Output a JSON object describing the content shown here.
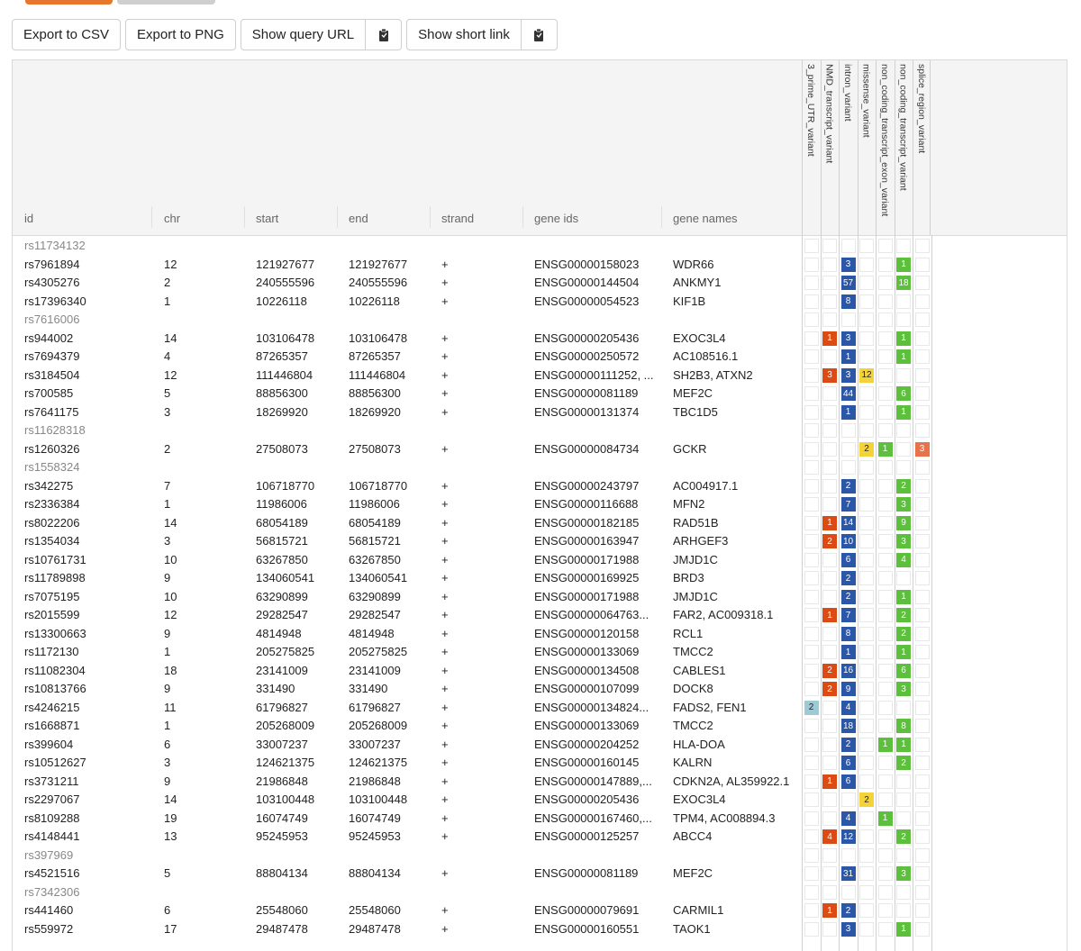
{
  "toolbar": {
    "export_csv": "Export to CSV",
    "export_png": "Export to PNG",
    "show_query_url": "Show query URL",
    "show_short_link": "Show short link",
    "clipboard_icon": "clipboard-icon"
  },
  "columns": {
    "id": "id",
    "chr": "chr",
    "start": "start",
    "end": "end",
    "strand": "strand",
    "gene_ids": "gene ids",
    "gene_names": "gene names"
  },
  "variant_columns": [
    "3_prime_UTR_variant",
    "NMD_transcript_variant",
    "intron_variant",
    "missense_variant",
    "non_coding_transcript_exon_variant",
    "non_coding_transcript_variant",
    "splice_region_variant"
  ],
  "colors": {
    "3_prime_UTR_variant": "#9ecad3",
    "NMD_transcript_variant": "#dc4b14",
    "intron_variant": "#2b57a6",
    "missense_variant": "#f3d23a",
    "non_coding_transcript_exon_variant": "#5cc03c",
    "non_coding_transcript_variant": "#5cc03c",
    "splice_region_variant": "#e8734a",
    "accent": "#e8772e"
  },
  "rows": [
    {
      "id": "rs11734132",
      "chr": "",
      "start": "",
      "end": "",
      "strand": "",
      "gene_ids": "",
      "gene_names": "",
      "v": [
        null,
        null,
        null,
        null,
        null,
        null,
        null
      ]
    },
    {
      "id": "rs7961894",
      "chr": "12",
      "start": "121927677",
      "end": "121927677",
      "strand": "+",
      "gene_ids": "ENSG00000158023",
      "gene_names": "WDR66",
      "v": [
        null,
        null,
        3,
        null,
        null,
        1,
        null
      ]
    },
    {
      "id": "rs4305276",
      "chr": "2",
      "start": "240555596",
      "end": "240555596",
      "strand": "+",
      "gene_ids": "ENSG00000144504",
      "gene_names": "ANKMY1",
      "v": [
        null,
        null,
        57,
        null,
        null,
        18,
        null
      ]
    },
    {
      "id": "rs17396340",
      "chr": "1",
      "start": "10226118",
      "end": "10226118",
      "strand": "+",
      "gene_ids": "ENSG00000054523",
      "gene_names": "KIF1B",
      "v": [
        null,
        null,
        8,
        null,
        null,
        null,
        null
      ]
    },
    {
      "id": "rs7616006",
      "chr": "",
      "start": "",
      "end": "",
      "strand": "",
      "gene_ids": "",
      "gene_names": "",
      "v": [
        null,
        null,
        null,
        null,
        null,
        null,
        null
      ]
    },
    {
      "id": "rs944002",
      "chr": "14",
      "start": "103106478",
      "end": "103106478",
      "strand": "+",
      "gene_ids": "ENSG00000205436",
      "gene_names": "EXOC3L4",
      "v": [
        null,
        1,
        3,
        null,
        null,
        1,
        null
      ]
    },
    {
      "id": "rs7694379",
      "chr": "4",
      "start": "87265357",
      "end": "87265357",
      "strand": "+",
      "gene_ids": "ENSG00000250572",
      "gene_names": "AC108516.1",
      "v": [
        null,
        null,
        1,
        null,
        null,
        1,
        null
      ]
    },
    {
      "id": "rs3184504",
      "chr": "12",
      "start": "111446804",
      "end": "111446804",
      "strand": "+",
      "gene_ids": "ENSG00000111252, ...",
      "gene_names": "SH2B3, ATXN2",
      "v": [
        null,
        3,
        3,
        12,
        null,
        null,
        null
      ]
    },
    {
      "id": "rs700585",
      "chr": "5",
      "start": "88856300",
      "end": "88856300",
      "strand": "+",
      "gene_ids": "ENSG00000081189",
      "gene_names": "MEF2C",
      "v": [
        null,
        null,
        44,
        null,
        null,
        6,
        null
      ]
    },
    {
      "id": "rs7641175",
      "chr": "3",
      "start": "18269920",
      "end": "18269920",
      "strand": "+",
      "gene_ids": "ENSG00000131374",
      "gene_names": "TBC1D5",
      "v": [
        null,
        null,
        1,
        null,
        null,
        1,
        null
      ]
    },
    {
      "id": "rs11628318",
      "chr": "",
      "start": "",
      "end": "",
      "strand": "",
      "gene_ids": "",
      "gene_names": "",
      "v": [
        null,
        null,
        null,
        null,
        null,
        null,
        null
      ]
    },
    {
      "id": "rs1260326",
      "chr": "2",
      "start": "27508073",
      "end": "27508073",
      "strand": "+",
      "gene_ids": "ENSG00000084734",
      "gene_names": "GCKR",
      "v": [
        null,
        null,
        null,
        2,
        1,
        null,
        3
      ]
    },
    {
      "id": "rs1558324",
      "chr": "",
      "start": "",
      "end": "",
      "strand": "",
      "gene_ids": "",
      "gene_names": "",
      "v": [
        null,
        null,
        null,
        null,
        null,
        null,
        null
      ]
    },
    {
      "id": "rs342275",
      "chr": "7",
      "start": "106718770",
      "end": "106718770",
      "strand": "+",
      "gene_ids": "ENSG00000243797",
      "gene_names": "AC004917.1",
      "v": [
        null,
        null,
        2,
        null,
        null,
        2,
        null
      ]
    },
    {
      "id": "rs2336384",
      "chr": "1",
      "start": "11986006",
      "end": "11986006",
      "strand": "+",
      "gene_ids": "ENSG00000116688",
      "gene_names": "MFN2",
      "v": [
        null,
        null,
        7,
        null,
        null,
        3,
        null
      ]
    },
    {
      "id": "rs8022206",
      "chr": "14",
      "start": "68054189",
      "end": "68054189",
      "strand": "+",
      "gene_ids": "ENSG00000182185",
      "gene_names": "RAD51B",
      "v": [
        null,
        1,
        14,
        null,
        null,
        9,
        null
      ]
    },
    {
      "id": "rs1354034",
      "chr": "3",
      "start": "56815721",
      "end": "56815721",
      "strand": "+",
      "gene_ids": "ENSG00000163947",
      "gene_names": "ARHGEF3",
      "v": [
        null,
        2,
        10,
        null,
        null,
        3,
        null
      ]
    },
    {
      "id": "rs10761731",
      "chr": "10",
      "start": "63267850",
      "end": "63267850",
      "strand": "+",
      "gene_ids": "ENSG00000171988",
      "gene_names": "JMJD1C",
      "v": [
        null,
        null,
        6,
        null,
        null,
        4,
        null
      ]
    },
    {
      "id": "rs11789898",
      "chr": "9",
      "start": "134060541",
      "end": "134060541",
      "strand": "+",
      "gene_ids": "ENSG00000169925",
      "gene_names": "BRD3",
      "v": [
        null,
        null,
        2,
        null,
        null,
        null,
        null
      ]
    },
    {
      "id": "rs7075195",
      "chr": "10",
      "start": "63290899",
      "end": "63290899",
      "strand": "+",
      "gene_ids": "ENSG00000171988",
      "gene_names": "JMJD1C",
      "v": [
        null,
        null,
        2,
        null,
        null,
        1,
        null
      ]
    },
    {
      "id": "rs2015599",
      "chr": "12",
      "start": "29282547",
      "end": "29282547",
      "strand": "+",
      "gene_ids": "ENSG00000064763...",
      "gene_names": "FAR2, AC009318.1",
      "v": [
        null,
        1,
        7,
        null,
        null,
        2,
        null
      ]
    },
    {
      "id": "rs13300663",
      "chr": "9",
      "start": "4814948",
      "end": "4814948",
      "strand": "+",
      "gene_ids": "ENSG00000120158",
      "gene_names": "RCL1",
      "v": [
        null,
        null,
        8,
        null,
        null,
        2,
        null
      ]
    },
    {
      "id": "rs1172130",
      "chr": "1",
      "start": "205275825",
      "end": "205275825",
      "strand": "+",
      "gene_ids": "ENSG00000133069",
      "gene_names": "TMCC2",
      "v": [
        null,
        null,
        1,
        null,
        null,
        1,
        null
      ]
    },
    {
      "id": "rs11082304",
      "chr": "18",
      "start": "23141009",
      "end": "23141009",
      "strand": "+",
      "gene_ids": "ENSG00000134508",
      "gene_names": "CABLES1",
      "v": [
        null,
        2,
        16,
        null,
        null,
        6,
        null
      ]
    },
    {
      "id": "rs10813766",
      "chr": "9",
      "start": "331490",
      "end": "331490",
      "strand": "+",
      "gene_ids": "ENSG00000107099",
      "gene_names": "DOCK8",
      "v": [
        null,
        2,
        9,
        null,
        null,
        3,
        null
      ]
    },
    {
      "id": "rs4246215",
      "chr": "11",
      "start": "61796827",
      "end": "61796827",
      "strand": "+",
      "gene_ids": "ENSG00000134824...",
      "gene_names": "FADS2, FEN1",
      "v": [
        2,
        null,
        4,
        null,
        null,
        null,
        null
      ]
    },
    {
      "id": "rs1668871",
      "chr": "1",
      "start": "205268009",
      "end": "205268009",
      "strand": "+",
      "gene_ids": "ENSG00000133069",
      "gene_names": "TMCC2",
      "v": [
        null,
        null,
        18,
        null,
        null,
        8,
        null
      ]
    },
    {
      "id": "rs399604",
      "chr": "6",
      "start": "33007237",
      "end": "33007237",
      "strand": "+",
      "gene_ids": "ENSG00000204252",
      "gene_names": "HLA-DOA",
      "v": [
        null,
        null,
        2,
        null,
        1,
        1,
        null
      ]
    },
    {
      "id": "rs10512627",
      "chr": "3",
      "start": "124621375",
      "end": "124621375",
      "strand": "+",
      "gene_ids": "ENSG00000160145",
      "gene_names": "KALRN",
      "v": [
        null,
        null,
        6,
        null,
        null,
        2,
        null
      ]
    },
    {
      "id": "rs3731211",
      "chr": "9",
      "start": "21986848",
      "end": "21986848",
      "strand": "+",
      "gene_ids": "ENSG00000147889,...",
      "gene_names": "CDKN2A, AL359922.1",
      "v": [
        null,
        1,
        6,
        null,
        null,
        null,
        null
      ]
    },
    {
      "id": "rs2297067",
      "chr": "14",
      "start": "103100448",
      "end": "103100448",
      "strand": "+",
      "gene_ids": "ENSG00000205436",
      "gene_names": "EXOC3L4",
      "v": [
        null,
        null,
        null,
        2,
        null,
        null,
        null
      ]
    },
    {
      "id": "rs8109288",
      "chr": "19",
      "start": "16074749",
      "end": "16074749",
      "strand": "+",
      "gene_ids": "ENSG00000167460,...",
      "gene_names": "TPM4, AC008894.3",
      "v": [
        null,
        null,
        4,
        null,
        1,
        null,
        null
      ]
    },
    {
      "id": "rs4148441",
      "chr": "13",
      "start": "95245953",
      "end": "95245953",
      "strand": "+",
      "gene_ids": "ENSG00000125257",
      "gene_names": "ABCC4",
      "v": [
        null,
        4,
        12,
        null,
        null,
        2,
        null
      ]
    },
    {
      "id": "rs397969",
      "chr": "",
      "start": "",
      "end": "",
      "strand": "",
      "gene_ids": "",
      "gene_names": "",
      "v": [
        null,
        null,
        null,
        null,
        null,
        null,
        null
      ]
    },
    {
      "id": "rs4521516",
      "chr": "5",
      "start": "88804134",
      "end": "88804134",
      "strand": "+",
      "gene_ids": "ENSG00000081189",
      "gene_names": "MEF2C",
      "v": [
        null,
        null,
        31,
        null,
        null,
        3,
        null
      ]
    },
    {
      "id": "rs7342306",
      "chr": "",
      "start": "",
      "end": "",
      "strand": "",
      "gene_ids": "",
      "gene_names": "",
      "v": [
        null,
        null,
        null,
        null,
        null,
        null,
        null
      ]
    },
    {
      "id": "rs441460",
      "chr": "6",
      "start": "25548060",
      "end": "25548060",
      "strand": "+",
      "gene_ids": "ENSG00000079691",
      "gene_names": "CARMIL1",
      "v": [
        null,
        1,
        2,
        null,
        null,
        null,
        null
      ]
    },
    {
      "id": "rs559972",
      "chr": "17",
      "start": "29487478",
      "end": "29487478",
      "strand": "+",
      "gene_ids": "ENSG00000160551",
      "gene_names": "TAOK1",
      "v": [
        null,
        null,
        3,
        null,
        null,
        1,
        null
      ]
    }
  ]
}
